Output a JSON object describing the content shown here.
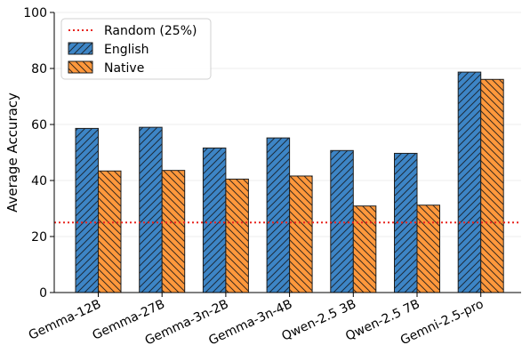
{
  "chart_data": {
    "type": "bar",
    "title": "",
    "xlabel": "",
    "ylabel": "Average Accuracy",
    "ylim": [
      0,
      100
    ],
    "yticks": [
      0,
      20,
      40,
      60,
      80,
      100
    ],
    "grid": "horizontal, light",
    "legend_position": "top-left",
    "categories": [
      "Gemma-12B",
      "Gemma-27B",
      "Gemma-3n-2B",
      "Gemma-3n-4B",
      "Qwen-2.5 3B",
      "Qwen-2.5 7B",
      "Gemni-2.5-pro"
    ],
    "series": [
      {
        "name": "English",
        "values": [
          58.6,
          59.0,
          51.6,
          55.2,
          50.7,
          49.7,
          78.7
        ],
        "color": "#3d85c6",
        "hatch": "////"
      },
      {
        "name": "Native",
        "values": [
          43.4,
          43.6,
          40.5,
          41.6,
          30.9,
          31.2,
          76.1
        ],
        "color": "#ff983c",
        "hatch": "\\\\\\\\"
      }
    ],
    "reference_line": {
      "name": "Random (25%)",
      "value": 25,
      "color": "#e8251f",
      "style": "dotted"
    }
  }
}
